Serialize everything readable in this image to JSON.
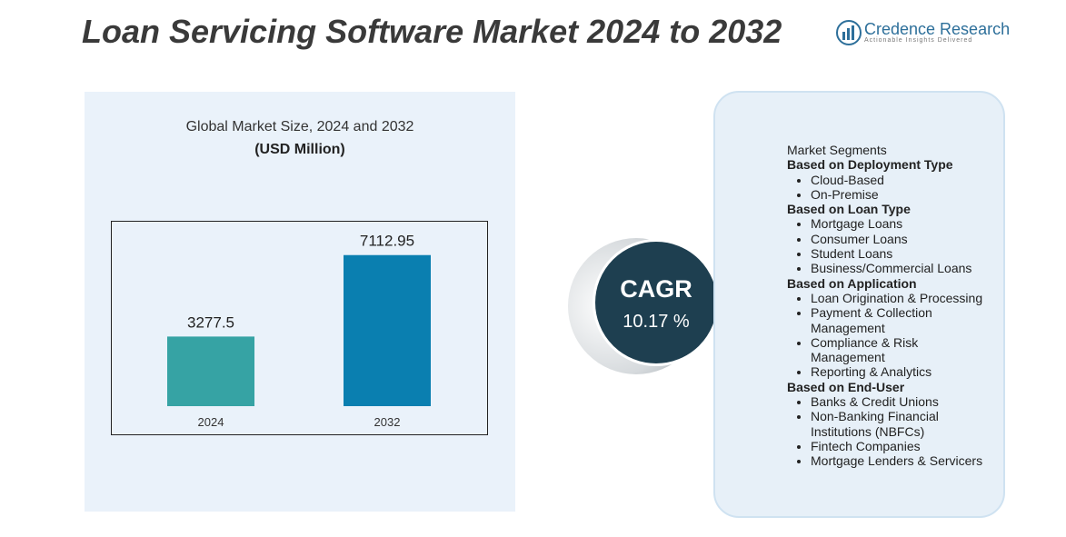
{
  "header": {
    "title": "Loan Servicing Software Market 2024 to 2032",
    "brand": "Credence Research",
    "tagline": "Actionable Insights Delivered"
  },
  "chart_data": {
    "type": "bar",
    "title": "Global Market Size, 2024 and 2032",
    "subtitle": "(USD Million)",
    "categories": [
      "2024",
      "2032"
    ],
    "values": [
      3277.5,
      7112.95
    ],
    "colors": [
      "#36a3a4",
      "#0a7fb0"
    ],
    "ylim": [
      0,
      8000
    ]
  },
  "cagr": {
    "label": "CAGR",
    "value": "10.17 %"
  },
  "segments": {
    "title": "Market Segments",
    "groups": [
      {
        "heading": "Based on Deployment Type",
        "items": [
          "Cloud-Based",
          "On-Premise"
        ]
      },
      {
        "heading": "Based on Loan Type",
        "items": [
          "Mortgage Loans",
          "Consumer Loans",
          "Student Loans",
          "Business/Commercial Loans"
        ]
      },
      {
        "heading": "Based on Application",
        "items": [
          "Loan Origination & Processing",
          "Payment & Collection Management",
          "Compliance & Risk Management",
          "Reporting & Analytics"
        ]
      },
      {
        "heading": "Based on End-User",
        "items": [
          "Banks & Credit Unions",
          "Non-Banking Financial Institutions (NBFCs)",
          "Fintech Companies",
          "Mortgage Lenders & Servicers"
        ]
      }
    ]
  }
}
